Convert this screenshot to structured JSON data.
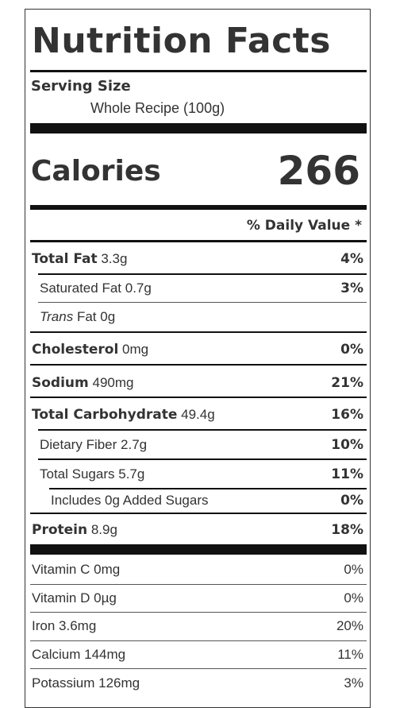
{
  "title": "Nutrition Facts",
  "serving": {
    "heading": "Serving Size",
    "value": "Whole Recipe (100g)"
  },
  "calories": {
    "label": "Calories",
    "value": "266"
  },
  "daily_value_heading": "% Daily Value *",
  "nutrients": [
    {
      "name": "Total Fat",
      "amount": "3.3g",
      "dv": "4%"
    },
    {
      "name": "Saturated Fat",
      "amount": "0.7g",
      "dv": "3%"
    },
    {
      "name_italic": "Trans",
      "name": "Fat",
      "amount": "0g",
      "dv": ""
    },
    {
      "name": "Cholesterol",
      "amount": "0mg",
      "dv": "0%"
    },
    {
      "name": "Sodium",
      "amount": "490mg",
      "dv": "21%"
    },
    {
      "name": "Total Carbohydrate",
      "amount": "49.4g",
      "dv": "16%"
    },
    {
      "name": "Dietary Fiber",
      "amount": "2.7g",
      "dv": "10%"
    },
    {
      "name": "Total Sugars",
      "amount": "5.7g",
      "dv": "11%"
    },
    {
      "name": "Includes 0g Added Sugars",
      "amount": "",
      "dv": "0%"
    },
    {
      "name": "Protein",
      "amount": "8.9g",
      "dv": "18%"
    }
  ],
  "vitamins": [
    {
      "name": "Vitamin C",
      "amount": "0mg",
      "dv": "0%"
    },
    {
      "name": "Vitamin D",
      "amount": "0µg",
      "dv": "0%"
    },
    {
      "name": "Iron",
      "amount": "3.6mg",
      "dv": "20%"
    },
    {
      "name": "Calcium",
      "amount": "144mg",
      "dv": "11%"
    },
    {
      "name": "Potassium",
      "amount": "126mg",
      "dv": "3%"
    }
  ]
}
